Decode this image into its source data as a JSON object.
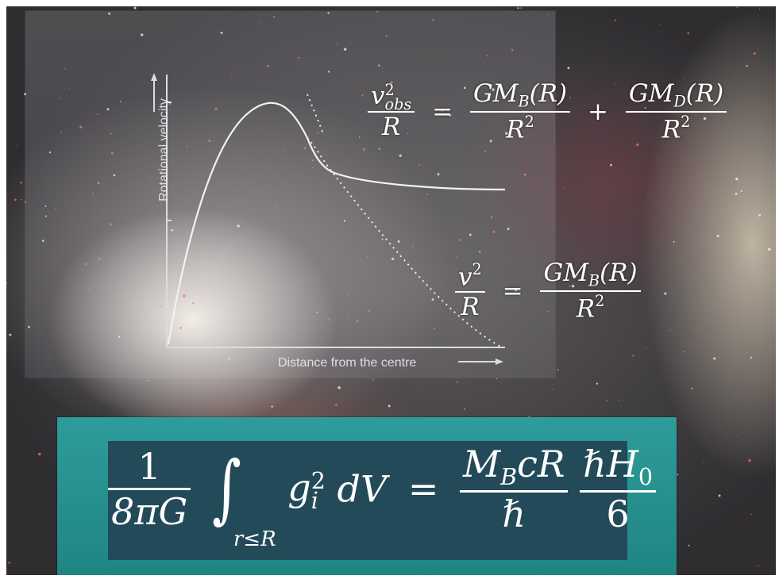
{
  "plot": {
    "y_axis_label": "Rotational velocity",
    "x_axis_label": "Distance from the centre",
    "observed_curve_style": "solid",
    "expected_curve_style": "dotted",
    "colors": {
      "curve": "#f2f2f2",
      "axis": "#dcdcdc",
      "panel": "#c8c8d2"
    }
  },
  "equations": {
    "observed": {
      "lhs_numerator": "v",
      "lhs_sup": "2",
      "lhs_sub": "obs",
      "lhs_denominator": "R",
      "equals": "=",
      "term1_numerator": "GM",
      "term1_numerator_sub": "B",
      "term1_numerator_arg": "(R)",
      "term1_denominator": "R",
      "term1_denominator_sup": "2",
      "plus": "+",
      "term2_numerator": "GM",
      "term2_numerator_sub": "D",
      "term2_numerator_arg": "(R)",
      "term2_denominator": "R",
      "term2_denominator_sup": "2"
    },
    "baryonic": {
      "lhs_numerator": "v",
      "lhs_sup": "2",
      "lhs_denominator": "R",
      "equals": "=",
      "rhs_numerator": "GM",
      "rhs_numerator_sub": "B",
      "rhs_numerator_arg": "(R)",
      "rhs_denominator": "R",
      "rhs_denominator_sup": "2"
    },
    "main": {
      "frac1_numerator": "1",
      "frac1_denominator": "8πG",
      "integral_sign": "∫",
      "integral_limit": "r≤R",
      "integrand_base": "g",
      "integrand_sup": "2",
      "integrand_sub": "i",
      "differential": "dV",
      "equals": "=",
      "frac2_numerator": "M",
      "frac2_numerator_sub": "B",
      "frac2_numerator_rest": "cR",
      "frac2_denominator": "ℏ",
      "frac3_numerator": "ℏH",
      "frac3_numerator_sub": "0",
      "frac3_denominator": "6"
    }
  },
  "colors": {
    "formula_box_outer": "#2a9796",
    "formula_box_inner": "#234a58",
    "text": "#ffffff"
  }
}
